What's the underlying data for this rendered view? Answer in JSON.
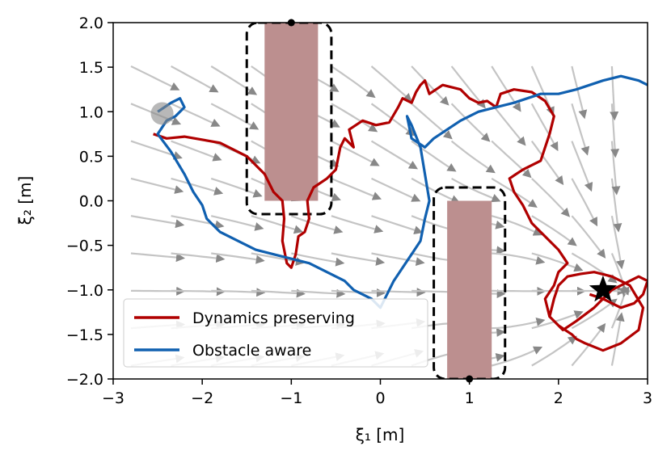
{
  "chart_data": {
    "type": "line",
    "title": "",
    "xlabel": "ξ₁ [m]",
    "ylabel": "ξ₂ [m]",
    "xlim": [
      -3,
      3
    ],
    "ylim": [
      -2,
      2
    ],
    "xticks": [
      -3,
      -2,
      -1,
      0,
      1,
      2,
      3
    ],
    "yticks": [
      -2.0,
      -1.5,
      -1.0,
      -0.5,
      0.0,
      0.5,
      1.0,
      1.5,
      2.0
    ],
    "xtick_labels": [
      "−3",
      "−2",
      "−1",
      "0",
      "1",
      "2",
      "3"
    ],
    "ytick_labels": [
      "−2.0",
      "−1.5",
      "−1.0",
      "−0.5",
      "0.0",
      "0.5",
      "1.0",
      "1.5",
      "2.0"
    ],
    "grid": false,
    "legend_position": "lower-left",
    "obstacles": [
      {
        "x": [
          -1.3,
          -0.7
        ],
        "y": [
          0.0,
          2.0
        ],
        "color": "#bc8f8f",
        "margin": [
          -1.5,
          -0.55,
          -0.15,
          2.0
        ]
      },
      {
        "x": [
          0.75,
          1.25
        ],
        "y": [
          -2.0,
          0.0
        ],
        "color": "#bc8f8f",
        "margin": [
          0.6,
          1.4,
          -2.0,
          0.15
        ]
      }
    ],
    "attractor": {
      "x": 2.5,
      "y": -1.0,
      "marker": "star"
    },
    "boundary_points": [
      {
        "x": -1.0,
        "y": 2.0
      },
      {
        "x": 1.0,
        "y": -2.0
      }
    ],
    "start_region": {
      "x": -2.45,
      "y": 0.98
    },
    "series": [
      {
        "name": "Dynamics preserving",
        "color": "#b00000",
        "x": [
          -2.55,
          -2.4,
          -2.2,
          -1.8,
          -1.5,
          -1.3,
          -1.2,
          -1.1,
          -1.08,
          -1.1,
          -1.05,
          -1.0,
          -0.95,
          -0.92,
          -0.85,
          -0.8,
          -0.82,
          -0.75,
          -0.6,
          -0.5,
          -0.45,
          -0.4,
          -0.35,
          -0.3,
          -0.35,
          -0.2,
          -0.05,
          0.1,
          0.2,
          0.25,
          0.35,
          0.4,
          0.45,
          0.5,
          0.55,
          0.7,
          0.9,
          1.0,
          1.1,
          1.2,
          1.3,
          1.35,
          1.5,
          1.7,
          1.85,
          1.95,
          1.9,
          1.8,
          1.6,
          1.45,
          1.5,
          1.6,
          1.7,
          1.8,
          1.9,
          2.0,
          2.1,
          2.0,
          1.95,
          1.85,
          1.9,
          2.0,
          2.15,
          2.2,
          2.3,
          2.5,
          2.7,
          2.9,
          2.95,
          2.8,
          2.6,
          2.4,
          2.25,
          2.1,
          2.0,
          1.95,
          1.9,
          2.05,
          2.2,
          2.4,
          2.6,
          2.8,
          2.9,
          3.0,
          2.95,
          2.85,
          2.7,
          2.5,
          2.35
        ],
        "y": [
          0.75,
          0.7,
          0.72,
          0.65,
          0.5,
          0.3,
          0.1,
          0.0,
          -0.2,
          -0.45,
          -0.7,
          -0.75,
          -0.6,
          -0.4,
          -0.35,
          -0.2,
          0.0,
          0.15,
          0.25,
          0.35,
          0.6,
          0.7,
          0.65,
          0.6,
          0.8,
          0.9,
          0.85,
          0.88,
          1.05,
          1.15,
          1.1,
          1.22,
          1.3,
          1.35,
          1.2,
          1.3,
          1.25,
          1.15,
          1.1,
          1.12,
          1.05,
          1.2,
          1.25,
          1.22,
          1.12,
          0.95,
          0.75,
          0.45,
          0.35,
          0.25,
          0.1,
          -0.05,
          -0.25,
          -0.35,
          -0.45,
          -0.55,
          -0.7,
          -0.8,
          -0.95,
          -1.1,
          -1.3,
          -1.4,
          -1.5,
          -1.55,
          -1.6,
          -1.68,
          -1.6,
          -1.45,
          -1.2,
          -0.95,
          -0.85,
          -0.8,
          -0.82,
          -0.85,
          -0.95,
          -1.1,
          -1.3,
          -1.45,
          -1.35,
          -1.2,
          -1.0,
          -0.9,
          -0.85,
          -0.9,
          -1.05,
          -1.15,
          -1.2,
          -1.1,
          -1.05
        ]
      },
      {
        "name": "Obstacle aware",
        "color": "#1060b0",
        "x": [
          -2.5,
          -2.35,
          -2.25,
          -2.2,
          -2.3,
          -2.4,
          -2.5,
          -2.35,
          -2.2,
          -2.1,
          -2.0,
          -1.95,
          -1.8,
          -1.6,
          -1.4,
          -1.2,
          -1.0,
          -0.8,
          -0.6,
          -0.4,
          -0.3,
          -0.2,
          -0.1,
          0.0,
          0.15,
          0.25,
          0.35,
          0.45,
          0.5,
          0.55,
          0.5,
          0.45,
          0.35,
          0.3,
          0.35,
          0.5,
          0.6,
          0.75,
          0.9,
          1.1,
          1.3,
          1.5,
          1.65,
          1.8,
          2.0,
          2.2,
          2.5,
          2.7,
          2.9,
          3.0
        ],
        "y": [
          1.0,
          1.1,
          1.15,
          1.05,
          0.95,
          0.9,
          0.75,
          0.55,
          0.3,
          0.1,
          -0.05,
          -0.2,
          -0.35,
          -0.45,
          -0.55,
          -0.6,
          -0.65,
          -0.7,
          -0.8,
          -0.9,
          -1.0,
          -1.05,
          -1.1,
          -1.2,
          -0.9,
          -0.75,
          -0.6,
          -0.45,
          -0.2,
          0.0,
          0.3,
          0.6,
          0.85,
          0.95,
          0.7,
          0.6,
          0.7,
          0.8,
          0.9,
          1.0,
          1.05,
          1.1,
          1.15,
          1.2,
          1.2,
          1.25,
          1.35,
          1.4,
          1.35,
          1.3
        ]
      }
    ]
  }
}
